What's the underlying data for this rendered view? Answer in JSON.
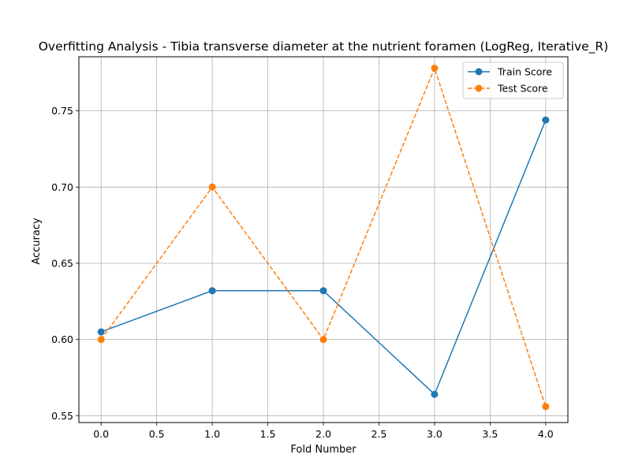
{
  "chart_data": {
    "type": "line",
    "title": "Overfitting Analysis - Tibia transverse diameter at the nutrient foramen (LogReg, Iterative_R)",
    "xlabel": "Fold Number",
    "ylabel": "Accuracy",
    "x": [
      0,
      1,
      2,
      3,
      4
    ],
    "xlim": [
      -0.2,
      4.2
    ],
    "ylim": [
      0.5455,
      0.7855
    ],
    "xticks": [
      0.0,
      0.5,
      1.0,
      1.5,
      2.0,
      2.5,
      3.0,
      3.5,
      4.0
    ],
    "xtick_labels": [
      "0.0",
      "0.5",
      "1.0",
      "1.5",
      "2.0",
      "2.5",
      "3.0",
      "3.5",
      "4.0"
    ],
    "yticks": [
      0.55,
      0.6,
      0.65,
      0.7,
      0.75
    ],
    "ytick_labels": [
      "0.55",
      "0.60",
      "0.65",
      "0.70",
      "0.75"
    ],
    "grid": true,
    "legend_position": "top-right",
    "series": [
      {
        "name": "Train Score",
        "values": [
          0.605,
          0.632,
          0.632,
          0.564,
          0.744
        ],
        "color": "#1f77b4",
        "dashed": false
      },
      {
        "name": "Test Score",
        "values": [
          0.6,
          0.7,
          0.6,
          0.778,
          0.556
        ],
        "color": "#ff7f0e",
        "dashed": true
      }
    ]
  }
}
